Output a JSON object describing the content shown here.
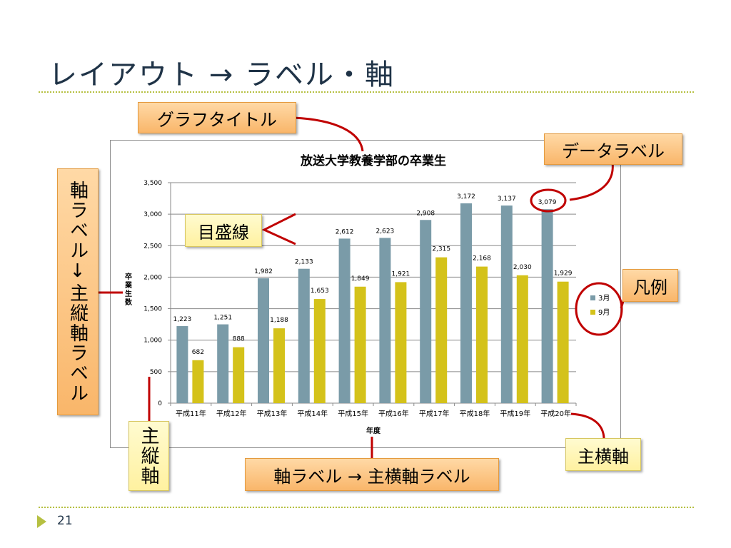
{
  "slide": {
    "title": "レイアウト → ラベル・軸",
    "page_number": "21"
  },
  "callouts": {
    "graph_title": "グラフタイトル",
    "data_label": "データラベル",
    "axis_label_vertical": "軸ラベル↓主縦軸ラベル",
    "gridline": "目盛線",
    "legend": "凡例",
    "main_vertical_axis": "主縦軸",
    "axis_label_horizontal": "軸ラベル → 主横軸ラベル",
    "main_horizontal_axis": "主横軸"
  },
  "colors": {
    "accent": "#b6c042",
    "callout_orange": "#f9b66a",
    "callout_yellow": "#fff1a0",
    "leader_line": "#c00000",
    "march": "#7a9ba8",
    "september": "#d4c21a"
  },
  "chart_data": {
    "type": "bar",
    "title": "放送大学教養学部の卒業生",
    "xlabel": "年度",
    "ylabel": "卒業生数",
    "categories": [
      "平成11年",
      "平成12年",
      "平成13年",
      "平成14年",
      "平成15年",
      "平成16年",
      "平成17年",
      "平成18年",
      "平成19年",
      "平成20年"
    ],
    "series": [
      {
        "name": "3月",
        "color": "#7a9ba8",
        "values": [
          1223,
          1251,
          1982,
          2133,
          2612,
          2623,
          2908,
          3172,
          3137,
          3079
        ]
      },
      {
        "name": "9月",
        "color": "#d4c21a",
        "values": [
          682,
          888,
          1188,
          1653,
          1849,
          1921,
          2315,
          2168,
          2030,
          1929
        ]
      }
    ],
    "ylim": [
      0,
      3500
    ],
    "yticks": [
      0,
      500,
      1000,
      1500,
      2000,
      2500,
      3000,
      3500
    ],
    "ytick_labels": [
      "0",
      "500",
      "1,000",
      "1,500",
      "2,000",
      "2,500",
      "3,000",
      "3,500"
    ],
    "grid": true,
    "legend_position": "right",
    "data_labels": true
  }
}
